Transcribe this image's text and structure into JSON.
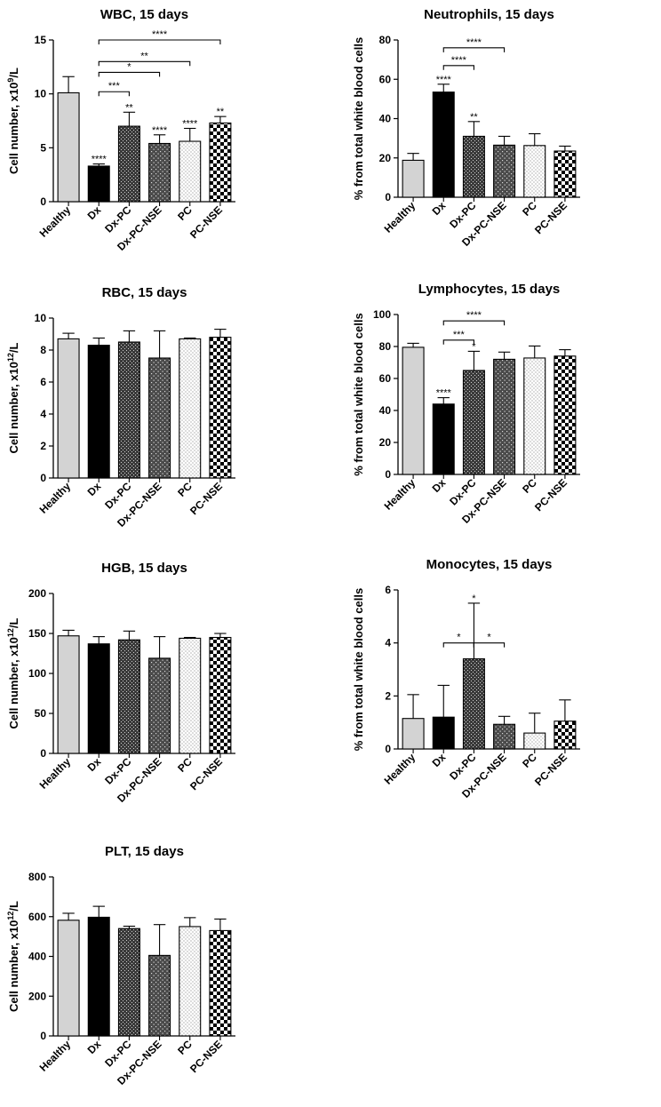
{
  "chart_data": [
    {
      "type": "bar",
      "title": "WBC, 15 days",
      "ylabel_base": "Cell number, x10",
      "ylabel_sup": "9",
      "ylabel_tail": "/L",
      "ylim": [
        0,
        15
      ],
      "yticks": [
        0,
        5,
        10,
        15
      ],
      "categories": [
        "Healthy",
        "Dx",
        "Dx-PC",
        "Dx-PC-NSE",
        "PC",
        "PC-NSE"
      ],
      "values": [
        10.1,
        3.3,
        7.0,
        5.4,
        5.6,
        7.3
      ],
      "errors": [
        1.5,
        0.2,
        1.3,
        0.8,
        1.2,
        0.6
      ],
      "bar_labels": [
        "",
        "****",
        "**",
        "****",
        "****",
        "**"
      ],
      "brackets": [
        {
          "from": 1,
          "to": 2,
          "y": 10.2,
          "label": "***"
        },
        {
          "from": 1,
          "to": 3,
          "y": 12.0,
          "label": "*"
        },
        {
          "from": 1,
          "to": 4,
          "y": 13.0,
          "label": "**"
        },
        {
          "from": 1,
          "to": 5,
          "y": 15.0,
          "label": "****"
        }
      ]
    },
    {
      "type": "bar",
      "title": "Neutrophils, 15 days",
      "ylabel_base": "% from total white blood cells",
      "ylabel_sup": "",
      "ylabel_tail": "",
      "ylim": [
        0,
        80
      ],
      "yticks": [
        0,
        20,
        40,
        60,
        80
      ],
      "categories": [
        "Healthy",
        "Dx",
        "Dx-PC",
        "Dx-PC-NSE",
        "PC",
        "PC-NSE"
      ],
      "values": [
        18.8,
        53.5,
        31.0,
        26.5,
        26.3,
        23.5
      ],
      "errors": [
        3.5,
        4.0,
        7.5,
        4.5,
        6.0,
        2.5
      ],
      "bar_labels": [
        "",
        "****",
        "**",
        "",
        "",
        ""
      ],
      "brackets": [
        {
          "from": 1,
          "to": 2,
          "y": 67.0,
          "label": "****"
        },
        {
          "from": 1,
          "to": 3,
          "y": 76.0,
          "label": "****"
        }
      ]
    },
    {
      "type": "bar",
      "title": "RBC, 15 days",
      "ylabel_base": "Cell number, x10",
      "ylabel_sup": "12",
      "ylabel_tail": "/L",
      "ylim": [
        0,
        10
      ],
      "yticks": [
        0,
        2,
        4,
        6,
        8,
        10
      ],
      "categories": [
        "Healthy",
        "Dx",
        "Dx-PC",
        "Dx-PC-NSE",
        "PC",
        "PC-NSE"
      ],
      "values": [
        8.7,
        8.3,
        8.5,
        7.5,
        8.7,
        8.8
      ],
      "errors": [
        0.35,
        0.45,
        0.7,
        1.7,
        0.05,
        0.5
      ],
      "bar_labels": [
        "",
        "",
        "",
        "",
        "",
        ""
      ],
      "brackets": []
    },
    {
      "type": "bar",
      "title": "Lymphocytes, 15 days",
      "ylabel_base": "% from total white blood cells",
      "ylabel_sup": "",
      "ylabel_tail": "",
      "ylim": [
        0,
        100
      ],
      "yticks": [
        0,
        20,
        40,
        60,
        80,
        100
      ],
      "categories": [
        "Healthy",
        "Dx",
        "Dx-PC",
        "Dx-PC-NSE",
        "PC",
        "PC-NSE"
      ],
      "values": [
        79.5,
        44.0,
        65.0,
        72.0,
        72.8,
        74.0
      ],
      "errors": [
        2.5,
        4.0,
        12.0,
        4.5,
        7.5,
        4.0
      ],
      "bar_labels": [
        "",
        "****",
        "*",
        "",
        "",
        ""
      ],
      "brackets": [
        {
          "from": 1,
          "to": 2,
          "y": 84.0,
          "label": "***"
        },
        {
          "from": 1,
          "to": 3,
          "y": 96.0,
          "label": "****"
        }
      ]
    },
    {
      "type": "bar",
      "title": "HGB, 15 days",
      "ylabel_base": "Cell number, x10",
      "ylabel_sup": "12",
      "ylabel_tail": "/L",
      "ylim": [
        0,
        200
      ],
      "yticks": [
        0,
        50,
        100,
        150,
        200
      ],
      "categories": [
        "Healthy",
        "Dx",
        "Dx-PC",
        "Dx-PC-NSE",
        "PC",
        "PC-NSE"
      ],
      "values": [
        147,
        137,
        142,
        119,
        144,
        145
      ],
      "errors": [
        7,
        9,
        11,
        27,
        1,
        5
      ],
      "bar_labels": [
        "",
        "",
        "",
        "",
        "",
        ""
      ],
      "brackets": []
    },
    {
      "type": "bar",
      "title": "Monocytes, 15 days",
      "ylabel_base": "% from total white blood cells",
      "ylabel_sup": "",
      "ylabel_tail": "",
      "ylim": [
        0,
        6
      ],
      "yticks": [
        0,
        2,
        4,
        6
      ],
      "categories": [
        "Healthy",
        "Dx",
        "Dx-PC",
        "Dx-PC-NSE",
        "PC",
        "PC-NSE"
      ],
      "values": [
        1.15,
        1.2,
        3.4,
        0.93,
        0.6,
        1.05
      ],
      "errors": [
        0.9,
        1.2,
        2.1,
        0.3,
        0.75,
        0.8
      ],
      "bar_labels": [
        "",
        "",
        "*",
        "",
        "",
        ""
      ],
      "brackets": [
        {
          "from": 1,
          "to": 2,
          "y": 4.0,
          "label": "*"
        },
        {
          "from": 2,
          "to": 3,
          "y": 4.0,
          "label": "*"
        }
      ]
    },
    {
      "type": "bar",
      "title": "PLT, 15 days",
      "ylabel_base": "Cell number, x10",
      "ylabel_sup": "12",
      "ylabel_tail": "/L",
      "ylim": [
        0,
        800
      ],
      "yticks": [
        0,
        200,
        400,
        600,
        800
      ],
      "categories": [
        "Healthy",
        "Dx",
        "Dx-PC",
        "Dx-PC-NSE",
        "PC",
        "PC-NSE"
      ],
      "values": [
        582,
        597,
        540,
        405,
        550,
        530
      ],
      "errors": [
        35,
        55,
        12,
        155,
        45,
        58
      ],
      "bar_labels": [
        "",
        "",
        "",
        "",
        "",
        ""
      ],
      "brackets": []
    }
  ],
  "styles": {
    "fills": [
      "solid-lightgray",
      "solid-black",
      "dense-dark-pattern",
      "sparse-dark-pattern",
      "white-dotted",
      "checkerboard"
    ],
    "colors": {
      "healthy": "#d3d3d3",
      "dx": "#000000",
      "stroke": "#000000",
      "background": "#ffffff"
    }
  }
}
